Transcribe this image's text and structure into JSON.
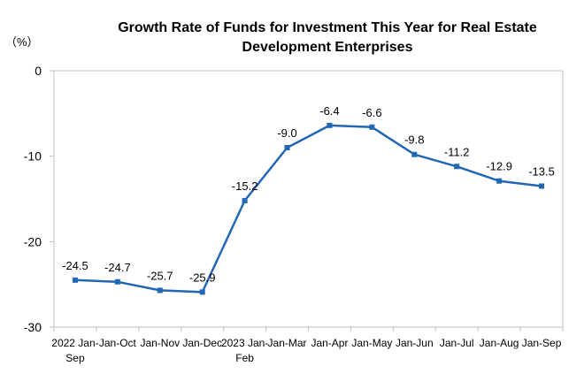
{
  "chart_data": {
    "type": "line",
    "title_lines": [
      "Growth Rate of Funds for Investment This Year for Real Estate",
      "Development Enterprises"
    ],
    "unit_label": "（%）",
    "ylabel": "",
    "xlabel": "",
    "ylim": [
      -30,
      0
    ],
    "yticks": [
      "0",
      "-10",
      "-20",
      "-30"
    ],
    "ytick_values": [
      0,
      -10,
      -20,
      -30
    ],
    "grid": false,
    "legend": "none",
    "categories": [
      [
        "2022 Jan-",
        "Sep"
      ],
      [
        "Jan-Oct"
      ],
      [
        "Jan-Nov"
      ],
      [
        "Jan-Dec"
      ],
      [
        "2023 Jan-",
        "Feb"
      ],
      [
        "Jan-Mar"
      ],
      [
        "Jan-Apr"
      ],
      [
        "Jan-May"
      ],
      [
        "Jan-Jun"
      ],
      [
        "Jan-Jul"
      ],
      [
        "Jan-Aug"
      ],
      [
        "Jan-Sep"
      ]
    ],
    "series": [
      {
        "values": [
          -24.5,
          -24.7,
          -25.7,
          -25.9,
          -15.2,
          -9.0,
          -6.4,
          -6.6,
          -9.8,
          -11.2,
          -12.9,
          -13.5
        ],
        "labels": [
          "-24.5",
          "-24.7",
          "-25.7",
          "-25.9",
          "-15.2",
          "-9.0",
          "-6.4",
          "-6.6",
          "-9.8",
          "-11.2",
          "-12.9",
          "-13.5"
        ],
        "color": "#2266b6"
      }
    ]
  }
}
